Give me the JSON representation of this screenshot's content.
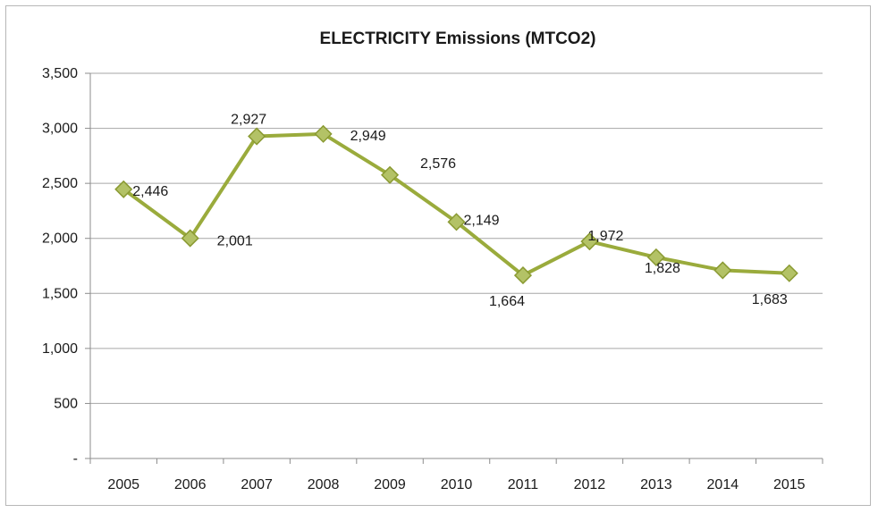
{
  "chart_data": {
    "type": "line",
    "title": "ELECTRICITY Emissions (MTCO2)",
    "xlabel": "",
    "ylabel": "",
    "categories": [
      "2005",
      "2006",
      "2007",
      "2008",
      "2009",
      "2010",
      "2011",
      "2012",
      "2013",
      "2014",
      "2015"
    ],
    "series": [
      {
        "values": [
          2446,
          2001,
          2927,
          2949,
          2576,
          2149,
          1664,
          1972,
          1828,
          1710,
          1683
        ],
        "labels": [
          "2,446",
          "2,001",
          "2,927",
          "2,949",
          "2,576",
          "2,149",
          "1,664",
          "1,972",
          "1,828",
          "",
          "1,683"
        ],
        "color": "#9aab3c",
        "marker": "diamond"
      }
    ],
    "ylim": [
      0,
      3500
    ],
    "yticks": [
      0,
      500,
      1000,
      1500,
      2000,
      2500,
      3000,
      3500
    ],
    "ytick_labels": [
      "-",
      "500",
      "1,000",
      "1,500",
      "2,000",
      "2,500",
      "3,000",
      "3,500"
    ],
    "grid": true,
    "legend": "none"
  }
}
